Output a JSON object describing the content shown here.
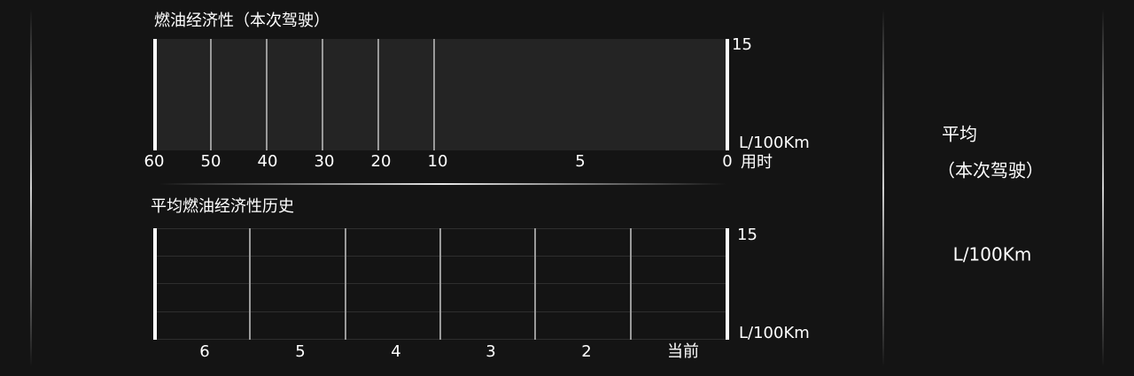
{
  "current_trip": {
    "title": "燃油经济性（本次驾驶）",
    "y_max": "15",
    "unit": "L/100Km",
    "time_labels": [
      "60",
      "50",
      "40",
      "30",
      "20",
      "10",
      "5",
      "0"
    ],
    "time_axis_label": "用时"
  },
  "history": {
    "title": "平均燃油经济性历史",
    "y_max": "15",
    "unit": "L/100Km",
    "labels": [
      "6",
      "5",
      "4",
      "3",
      "2",
      "当前"
    ]
  },
  "average": {
    "title": "平均",
    "subtitle": "（本次驾驶）",
    "unit": "L/100Km"
  }
}
